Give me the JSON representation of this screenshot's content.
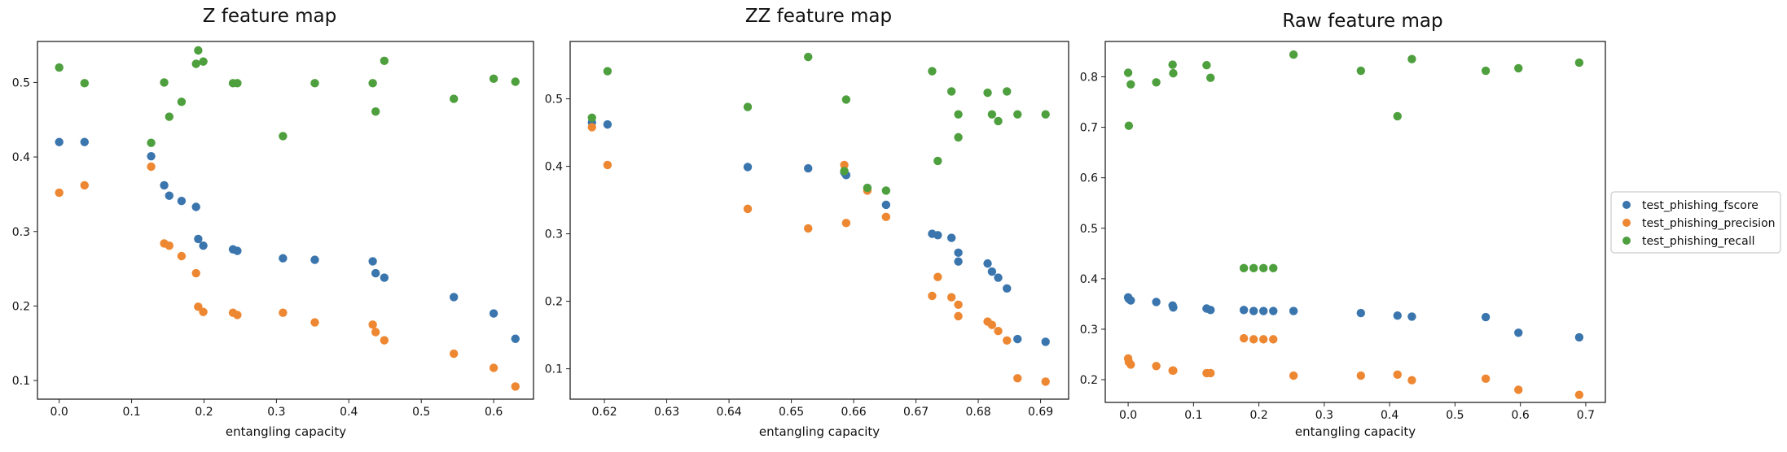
{
  "colors": {
    "fscore": "#3a75ad",
    "precision": "#ee8732",
    "recall": "#4e9f3d",
    "axis": "#222222"
  },
  "legend": {
    "placement": "right",
    "entries": [
      "test_phishing_fscore",
      "test_phishing_precision",
      "test_phishing_recall"
    ]
  },
  "chart_data": [
    {
      "type": "scatter",
      "title": "Z feature map",
      "xlabel": "entangling capacity",
      "ylabel": "",
      "xlim": [
        -0.03,
        0.655
      ],
      "ylim": [
        0.075,
        0.555
      ],
      "xticks": [
        0.0,
        0.1,
        0.2,
        0.3,
        0.4,
        0.5,
        0.6
      ],
      "xtick_labels": [
        "0.0",
        "0.1",
        "0.2",
        "0.3",
        "0.4",
        "0.5",
        "0.6"
      ],
      "yticks": [
        0.1,
        0.2,
        0.3,
        0.4,
        0.5
      ],
      "ytick_labels": [
        "0.1",
        "0.2",
        "0.3",
        "0.4",
        "0.5"
      ],
      "grid": false,
      "series": [
        {
          "name": "test_phishing_fscore",
          "points": [
            [
              0.0,
              0.42
            ],
            [
              0.035,
              0.42
            ],
            [
              0.127,
              0.401
            ],
            [
              0.145,
              0.362
            ],
            [
              0.152,
              0.348
            ],
            [
              0.169,
              0.341
            ],
            [
              0.189,
              0.333
            ],
            [
              0.192,
              0.29
            ],
            [
              0.199,
              0.281
            ],
            [
              0.24,
              0.276
            ],
            [
              0.246,
              0.274
            ],
            [
              0.309,
              0.264
            ],
            [
              0.353,
              0.262
            ],
            [
              0.433,
              0.26
            ],
            [
              0.437,
              0.244
            ],
            [
              0.449,
              0.238
            ],
            [
              0.545,
              0.212
            ],
            [
              0.6,
              0.19
            ],
            [
              0.63,
              0.156
            ]
          ]
        },
        {
          "name": "test_phishing_precision",
          "points": [
            [
              0.0,
              0.352
            ],
            [
              0.035,
              0.362
            ],
            [
              0.127,
              0.387
            ],
            [
              0.145,
              0.284
            ],
            [
              0.152,
              0.281
            ],
            [
              0.169,
              0.267
            ],
            [
              0.189,
              0.244
            ],
            [
              0.192,
              0.199
            ],
            [
              0.199,
              0.192
            ],
            [
              0.24,
              0.191
            ],
            [
              0.246,
              0.188
            ],
            [
              0.309,
              0.191
            ],
            [
              0.353,
              0.178
            ],
            [
              0.433,
              0.175
            ],
            [
              0.437,
              0.165
            ],
            [
              0.449,
              0.154
            ],
            [
              0.545,
              0.136
            ],
            [
              0.6,
              0.117
            ],
            [
              0.63,
              0.092
            ]
          ]
        },
        {
          "name": "test_phishing_recall",
          "points": [
            [
              0.0,
              0.52
            ],
            [
              0.035,
              0.499
            ],
            [
              0.127,
              0.419
            ],
            [
              0.145,
              0.5
            ],
            [
              0.152,
              0.454
            ],
            [
              0.169,
              0.474
            ],
            [
              0.189,
              0.525
            ],
            [
              0.192,
              0.543
            ],
            [
              0.199,
              0.528
            ],
            [
              0.24,
              0.499
            ],
            [
              0.246,
              0.499
            ],
            [
              0.309,
              0.428
            ],
            [
              0.353,
              0.499
            ],
            [
              0.433,
              0.499
            ],
            [
              0.437,
              0.461
            ],
            [
              0.449,
              0.529
            ],
            [
              0.545,
              0.478
            ],
            [
              0.6,
              0.505
            ],
            [
              0.63,
              0.501
            ]
          ]
        }
      ]
    },
    {
      "type": "scatter",
      "title": "ZZ feature map",
      "xlabel": "entangling capacity",
      "ylabel": "",
      "xlim": [
        0.6145,
        0.6945
      ],
      "ylim": [
        0.055,
        0.585
      ],
      "xticks": [
        0.62,
        0.63,
        0.64,
        0.65,
        0.66,
        0.67,
        0.68,
        0.69
      ],
      "xtick_labels": [
        "0.62",
        "0.63",
        "0.64",
        "0.65",
        "0.66",
        "0.67",
        "0.68",
        "0.69"
      ],
      "yticks": [
        0.1,
        0.2,
        0.3,
        0.4,
        0.5
      ],
      "ytick_labels": [
        "0.1",
        "0.2",
        "0.3",
        "0.4",
        "0.5"
      ],
      "grid": false,
      "series": [
        {
          "name": "test_phishing_fscore",
          "points": [
            [
              0.618,
              0.465
            ],
            [
              0.6205,
              0.462
            ],
            [
              0.643,
              0.399
            ],
            [
              0.6527,
              0.397
            ],
            [
              0.6585,
              0.391
            ],
            [
              0.6588,
              0.387
            ],
            [
              0.6622,
              0.368
            ],
            [
              0.6652,
              0.343
            ],
            [
              0.6726,
              0.3
            ],
            [
              0.6735,
              0.298
            ],
            [
              0.6757,
              0.294
            ],
            [
              0.6768,
              0.272
            ],
            [
              0.6768,
              0.259
            ],
            [
              0.6815,
              0.256
            ],
            [
              0.6822,
              0.244
            ],
            [
              0.6832,
              0.235
            ],
            [
              0.6846,
              0.219
            ],
            [
              0.6863,
              0.144
            ],
            [
              0.6908,
              0.14
            ]
          ]
        },
        {
          "name": "test_phishing_precision",
          "points": [
            [
              0.618,
              0.458
            ],
            [
              0.6205,
              0.402
            ],
            [
              0.643,
              0.337
            ],
            [
              0.6527,
              0.308
            ],
            [
              0.6585,
              0.402
            ],
            [
              0.6588,
              0.316
            ],
            [
              0.6622,
              0.364
            ],
            [
              0.6652,
              0.325
            ],
            [
              0.6726,
              0.208
            ],
            [
              0.6735,
              0.236
            ],
            [
              0.6757,
              0.206
            ],
            [
              0.6768,
              0.195
            ],
            [
              0.6768,
              0.178
            ],
            [
              0.6815,
              0.17
            ],
            [
              0.6822,
              0.165
            ],
            [
              0.6832,
              0.156
            ],
            [
              0.6846,
              0.142
            ],
            [
              0.6863,
              0.086
            ],
            [
              0.6908,
              0.081
            ]
          ]
        },
        {
          "name": "test_phishing_recall",
          "points": [
            [
              0.618,
              0.472
            ],
            [
              0.6205,
              0.541
            ],
            [
              0.643,
              0.488
            ],
            [
              0.6527,
              0.562
            ],
            [
              0.6585,
              0.393
            ],
            [
              0.6588,
              0.499
            ],
            [
              0.6622,
              0.368
            ],
            [
              0.6652,
              0.364
            ],
            [
              0.6726,
              0.541
            ],
            [
              0.6735,
              0.408
            ],
            [
              0.6757,
              0.511
            ],
            [
              0.6768,
              0.477
            ],
            [
              0.6768,
              0.443
            ],
            [
              0.6815,
              0.509
            ],
            [
              0.6822,
              0.477
            ],
            [
              0.6832,
              0.467
            ],
            [
              0.6846,
              0.511
            ],
            [
              0.6863,
              0.477
            ],
            [
              0.6908,
              0.477
            ]
          ]
        }
      ]
    },
    {
      "type": "scatter",
      "title": "Raw feature map",
      "xlabel": "entangling capacity",
      "ylabel": "",
      "xlim": [
        -0.035,
        0.73
      ],
      "ylim": [
        0.155,
        0.87
      ],
      "xticks": [
        0.0,
        0.1,
        0.2,
        0.3,
        0.4,
        0.5,
        0.6,
        0.7
      ],
      "xtick_labels": [
        "0.0",
        "0.1",
        "0.2",
        "0.3",
        "0.4",
        "0.5",
        "0.6",
        "0.7"
      ],
      "yticks": [
        0.2,
        0.3,
        0.4,
        0.5,
        0.6,
        0.7,
        0.8
      ],
      "ytick_labels": [
        "0.2",
        "0.3",
        "0.4",
        "0.5",
        "0.6",
        "0.7",
        "0.8"
      ],
      "grid": false,
      "series": [
        {
          "name": "test_phishing_fscore",
          "points": [
            [
              0.0,
              0.363
            ],
            [
              0.001,
              0.36
            ],
            [
              0.004,
              0.357
            ],
            [
              0.043,
              0.354
            ],
            [
              0.068,
              0.347
            ],
            [
              0.069,
              0.343
            ],
            [
              0.12,
              0.341
            ],
            [
              0.126,
              0.338
            ],
            [
              0.177,
              0.338
            ],
            [
              0.192,
              0.336
            ],
            [
              0.207,
              0.336
            ],
            [
              0.222,
              0.336
            ],
            [
              0.253,
              0.336
            ],
            [
              0.356,
              0.332
            ],
            [
              0.412,
              0.327
            ],
            [
              0.434,
              0.325
            ],
            [
              0.547,
              0.324
            ],
            [
              0.597,
              0.293
            ],
            [
              0.69,
              0.284
            ]
          ]
        },
        {
          "name": "test_phishing_precision",
          "points": [
            [
              0.0,
              0.242
            ],
            [
              0.001,
              0.235
            ],
            [
              0.004,
              0.23
            ],
            [
              0.043,
              0.227
            ],
            [
              0.068,
              0.218
            ],
            [
              0.069,
              0.218
            ],
            [
              0.12,
              0.213
            ],
            [
              0.126,
              0.213
            ],
            [
              0.177,
              0.282
            ],
            [
              0.192,
              0.28
            ],
            [
              0.207,
              0.28
            ],
            [
              0.222,
              0.28
            ],
            [
              0.253,
              0.208
            ],
            [
              0.356,
              0.208
            ],
            [
              0.412,
              0.21
            ],
            [
              0.434,
              0.199
            ],
            [
              0.547,
              0.202
            ],
            [
              0.597,
              0.18
            ],
            [
              0.69,
              0.17
            ]
          ]
        },
        {
          "name": "test_phishing_recall",
          "points": [
            [
              0.0,
              0.808
            ],
            [
              0.001,
              0.703
            ],
            [
              0.004,
              0.785
            ],
            [
              0.043,
              0.789
            ],
            [
              0.068,
              0.824
            ],
            [
              0.069,
              0.807
            ],
            [
              0.12,
              0.823
            ],
            [
              0.126,
              0.798
            ],
            [
              0.177,
              0.421
            ],
            [
              0.192,
              0.421
            ],
            [
              0.207,
              0.421
            ],
            [
              0.222,
              0.421
            ],
            [
              0.253,
              0.844
            ],
            [
              0.356,
              0.812
            ],
            [
              0.412,
              0.722
            ],
            [
              0.434,
              0.835
            ],
            [
              0.547,
              0.812
            ],
            [
              0.597,
              0.817
            ],
            [
              0.69,
              0.828
            ]
          ]
        }
      ]
    }
  ]
}
